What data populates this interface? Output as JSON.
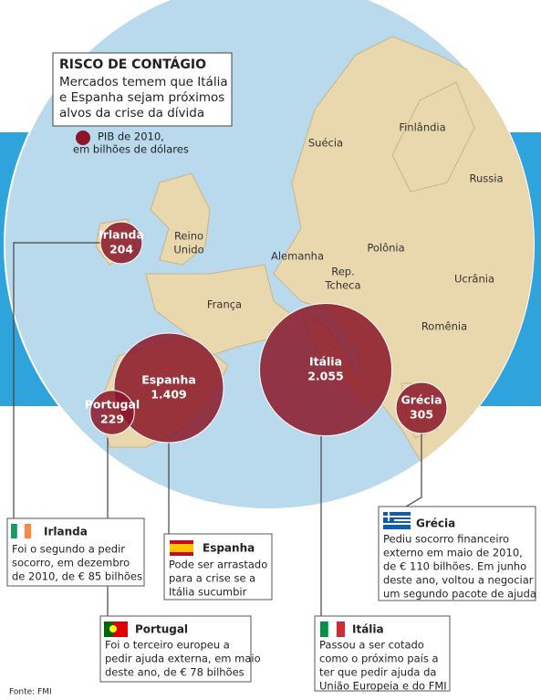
{
  "header": {
    "title": "RISCO DE CONTÁGIO",
    "subtitle": [
      "Mercados temem que Itália",
      "e Espanha sejam próximos",
      "alvos da crise da dívida"
    ]
  },
  "legend": [
    "PIB de 2010,",
    "em bilhões de dólares"
  ],
  "countries": [
    "Suécia",
    "Finlândia",
    "Russia",
    "Reino",
    "Unido",
    "Alemanha",
    "Polônia",
    "Rep.",
    "Tcheca",
    "Ucrânia",
    "França",
    "Romênia"
  ],
  "bubbles": [
    {
      "name": "Irlanda",
      "value": 204
    },
    {
      "name": "Espanha",
      "value": {
        "value": 1409,
        "label": "1.409"
      }
    },
    {
      "name": "Portugal",
      "value": 229
    },
    {
      "name": "Itália",
      "value": {
        "value": 2055,
        "label": "2.055"
      }
    },
    {
      "name": "Grécia",
      "value": 305
    }
  ],
  "callouts": [
    {
      "name": "Irlanda",
      "lines": [
        "Foi o segundo a pedir",
        "socorro, em dezembro",
        "de 2010, de € 85 bilhões"
      ]
    },
    {
      "name": "Espanha",
      "lines": [
        "Pode ser arrastado",
        "para a crise se a",
        "Itália sucumbir"
      ]
    },
    {
      "name": "Portugal",
      "lines": [
        "Foi o terceiro europeu a",
        "pedir ajuda externa, em maio",
        "deste ano, de € 78 bilhões"
      ]
    },
    {
      "name": "Itália",
      "lines": [
        "Passou a ser cotado",
        "como o próximo país a",
        "ter que pedir ajuda da",
        "União Europeia e do FMI"
      ]
    },
    {
      "name": "Grécia",
      "lines": [
        "Pediu socorro financeiro",
        "externo em maio de 2010,",
        "de € 110 bilhões. Em junho",
        "deste ano, voltou a negociar",
        "um segundo pacote de ajuda"
      ]
    }
  ],
  "source": "Fonte: FMI"
}
